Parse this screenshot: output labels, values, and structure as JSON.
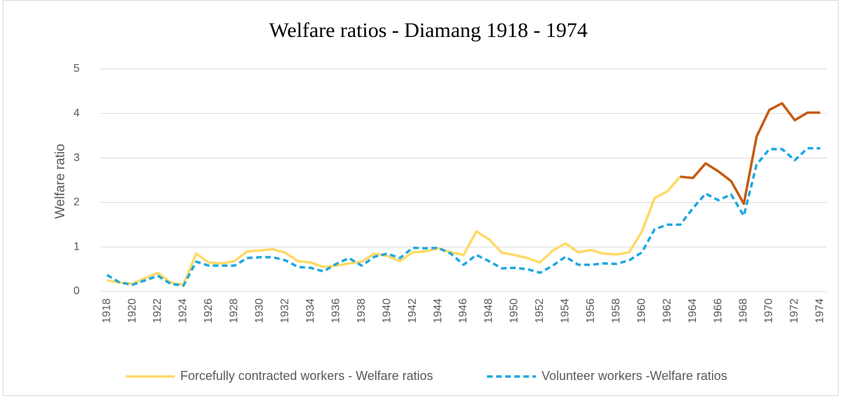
{
  "chart_data": {
    "type": "line",
    "title": "Welfare ratios - Diamang 1918 - 1974",
    "y_label": "Welfare ratio",
    "x": [
      1918,
      1919,
      1920,
      1921,
      1922,
      1923,
      1924,
      1925,
      1926,
      1927,
      1928,
      1929,
      1930,
      1931,
      1932,
      1933,
      1934,
      1935,
      1936,
      1937,
      1938,
      1939,
      1940,
      1941,
      1942,
      1943,
      1944,
      1945,
      1946,
      1947,
      1948,
      1949,
      1950,
      1951,
      1952,
      1953,
      1954,
      1955,
      1956,
      1957,
      1958,
      1959,
      1960,
      1961,
      1962,
      1963,
      1964,
      1965,
      1966,
      1967,
      1968,
      1969,
      1970,
      1971,
      1972,
      1973,
      1974
    ],
    "series": [
      {
        "name": "Forcefully contracted workers - Welfare ratios",
        "color": "#ffd966",
        "dashed": false,
        "highlight_from": 1963,
        "highlight_color": "#c55a11",
        "values": [
          0.25,
          0.2,
          0.17,
          0.3,
          0.42,
          0.2,
          0.15,
          0.85,
          0.65,
          0.63,
          0.68,
          0.9,
          0.92,
          0.95,
          0.87,
          0.68,
          0.65,
          0.55,
          0.58,
          0.63,
          0.67,
          0.85,
          0.8,
          0.68,
          0.88,
          0.9,
          0.97,
          0.88,
          0.82,
          1.35,
          1.17,
          0.87,
          0.82,
          0.75,
          0.65,
          0.92,
          1.08,
          0.88,
          0.93,
          0.85,
          0.83,
          0.88,
          1.35,
          2.1,
          2.25,
          2.58,
          2.55,
          2.88,
          2.7,
          2.48,
          1.97,
          3.48,
          4.08,
          4.23,
          3.85,
          4.02,
          4.02
        ]
      },
      {
        "name": "Volunteer workers -Welfare ratios",
        "color": "#1ea7e1",
        "dashed": true,
        "values": [
          0.37,
          0.2,
          0.15,
          0.25,
          0.35,
          0.17,
          0.13,
          0.67,
          0.58,
          0.58,
          0.58,
          0.75,
          0.77,
          0.77,
          0.7,
          0.55,
          0.53,
          0.45,
          0.62,
          0.75,
          0.58,
          0.78,
          0.85,
          0.75,
          0.98,
          0.97,
          0.98,
          0.85,
          0.6,
          0.82,
          0.68,
          0.52,
          0.53,
          0.5,
          0.42,
          0.58,
          0.78,
          0.6,
          0.6,
          0.63,
          0.62,
          0.7,
          0.88,
          1.4,
          1.5,
          1.5,
          1.87,
          2.2,
          2.05,
          2.18,
          1.7,
          2.85,
          3.2,
          3.2,
          2.95,
          3.22,
          3.22
        ]
      }
    ],
    "xlim": [
      1917.5,
      1974.5
    ],
    "xticks": [
      1918,
      1920,
      1922,
      1924,
      1926,
      1928,
      1930,
      1932,
      1934,
      1936,
      1938,
      1940,
      1942,
      1944,
      1946,
      1948,
      1950,
      1952,
      1954,
      1956,
      1958,
      1960,
      1962,
      1964,
      1966,
      1968,
      1970,
      1972,
      1974
    ],
    "ylim": [
      0,
      5
    ],
    "yticks": [
      0,
      1,
      2,
      3,
      4,
      5
    ],
    "grid": true
  }
}
